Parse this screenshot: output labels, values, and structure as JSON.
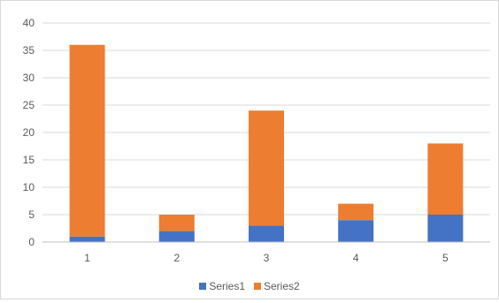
{
  "chart_data": {
    "type": "bar",
    "stacked": true,
    "categories": [
      "1",
      "2",
      "3",
      "4",
      "5"
    ],
    "series": [
      {
        "name": "Series1",
        "values": [
          1,
          2,
          3,
          4,
          5
        ],
        "color": "#4472C4"
      },
      {
        "name": "Series2",
        "values": [
          35,
          3,
          21,
          3,
          13
        ],
        "color": "#ED7D31"
      }
    ],
    "ylim": [
      0,
      40
    ],
    "yticks": [
      "0",
      "5",
      "10",
      "15",
      "20",
      "25",
      "30",
      "35",
      "40"
    ],
    "grid": true,
    "legend_position": "bottom",
    "colors": {
      "gridline": "#d9d9d9",
      "axis": "#bfbfbf",
      "text": "#595959"
    }
  }
}
